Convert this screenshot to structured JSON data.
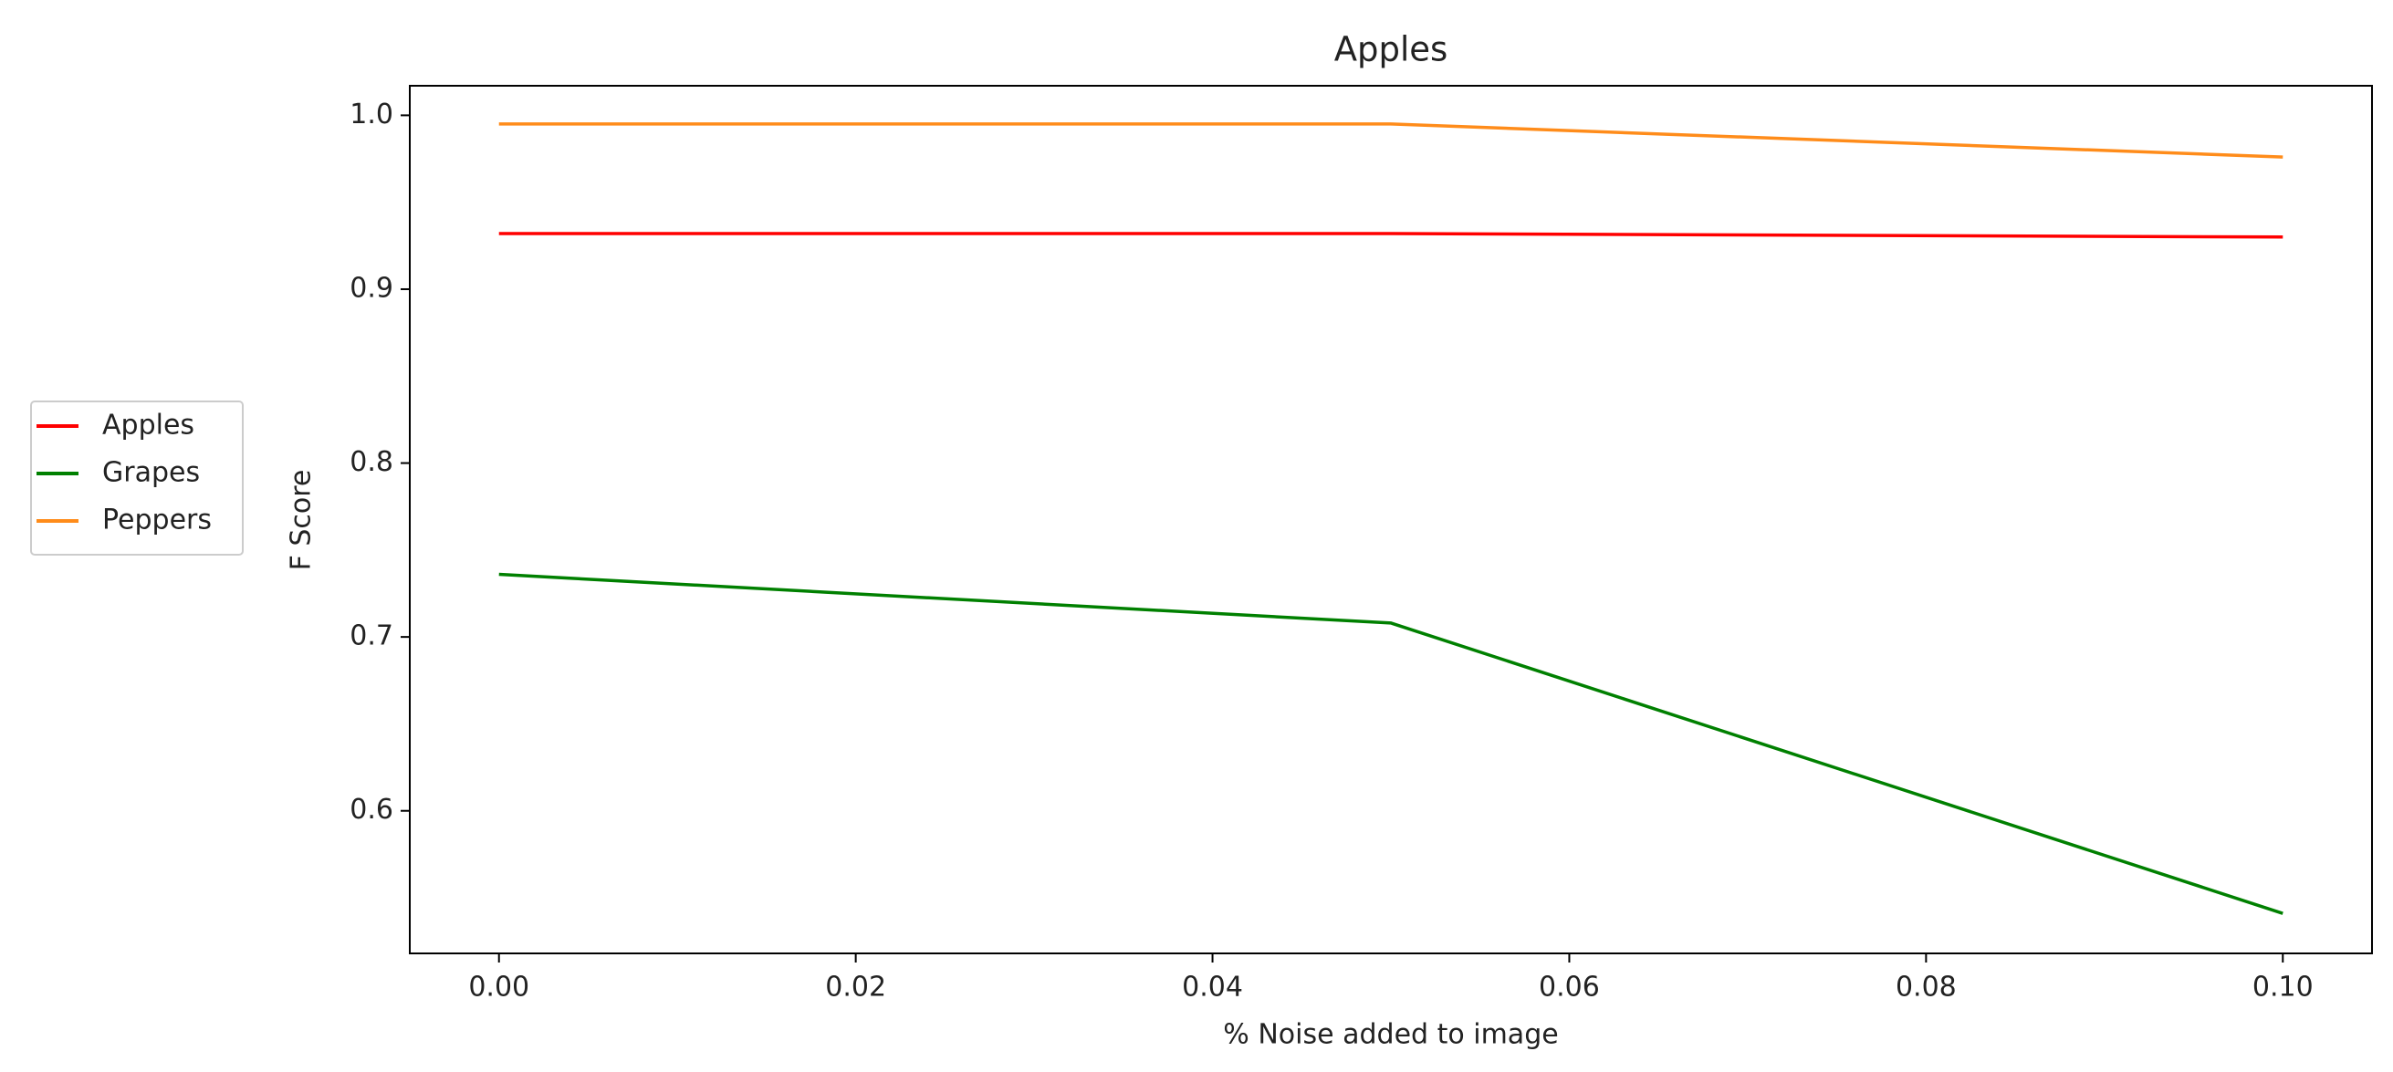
{
  "chart_data": {
    "type": "line",
    "title": "Apples",
    "x_label": "% Noise added to image",
    "y_label": "F Score",
    "x": [
      0,
      0.05,
      0.1
    ],
    "series": [
      {
        "name": "Apples",
        "color": "#ff0000",
        "values": [
          0.932,
          0.932,
          0.93
        ]
      },
      {
        "name": "Grapes",
        "color": "#008000",
        "values": [
          0.736,
          0.708,
          0.541
        ]
      },
      {
        "name": "Peppers",
        "color": "#ff8c1a",
        "values": [
          0.995,
          0.995,
          0.976
        ]
      }
    ],
    "xlim": [
      -0.005,
      0.105
    ],
    "xticks": [
      {
        "value": 0,
        "label": "0.00"
      },
      {
        "value": 0.02,
        "label": "0.02"
      },
      {
        "value": 0.04,
        "label": "0.04"
      },
      {
        "value": 0.06,
        "label": "0.06"
      },
      {
        "value": 0.08,
        "label": "0.08"
      },
      {
        "value": 0.1,
        "label": "0.10"
      }
    ],
    "ylim": [
      0.518,
      1.017
    ],
    "yticks": [
      0.6,
      0.7,
      0.8,
      0.9,
      {
        "value": 1.0,
        "label": "1.0"
      }
    ],
    "grid": false,
    "legend": "outside left"
  }
}
